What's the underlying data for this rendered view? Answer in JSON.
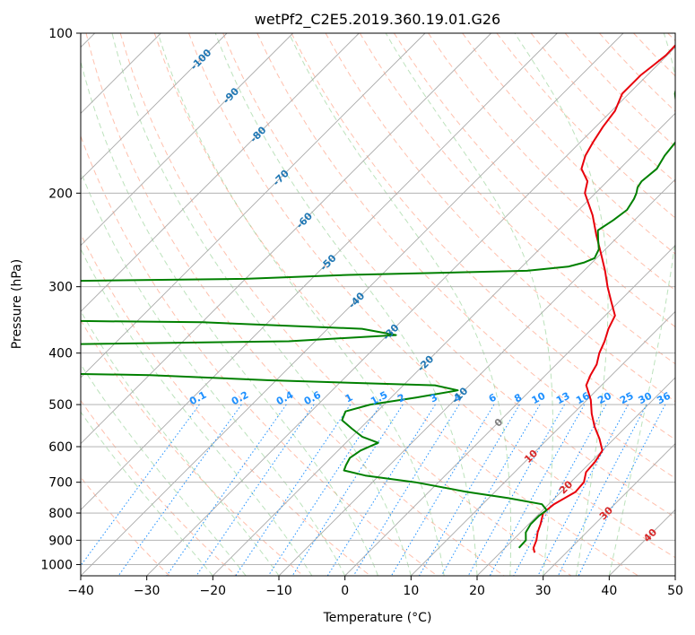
{
  "colors": {
    "temperature": "#e8000b",
    "dewpoint": "#008000",
    "isotherm": "#a9a9a9",
    "isobar": "#a9a9a9",
    "dry_adiabat": "#ff8c69",
    "moist_adiabat": "#8fcf8f",
    "mixing_ratio": "#1e90ff",
    "isotherm_label": "#1f77b4",
    "isotherm_label_warm": "#d62728",
    "zero_label": "#7f7f7f",
    "background": "#ffffff"
  },
  "chart_data": {
    "type": "line",
    "subtype": "skew-t log-p diagram",
    "title": "wetPf2_C2E5.2019.360.19.01.G26",
    "xlabel": "Temperature (°C)",
    "ylabel": "Pressure (hPa)",
    "xlim": [
      -40,
      50
    ],
    "ylim": [
      1050,
      100
    ],
    "y_scale": "log",
    "grid": true,
    "x_ticks": [
      -40,
      -30,
      -20,
      -10,
      0,
      10,
      20,
      30,
      40,
      50
    ],
    "x_tick_labels": [
      "−40",
      "−30",
      "−20",
      "−10",
      "0",
      "10",
      "20",
      "30",
      "40",
      "50"
    ],
    "y_ticks": [
      100,
      200,
      300,
      400,
      500,
      600,
      700,
      800,
      900,
      1000
    ],
    "y_tick_labels": [
      "100",
      "200",
      "300",
      "400",
      "500",
      "600",
      "700",
      "800",
      "900",
      "1000"
    ],
    "isotherm_labels": [
      {
        "text": "-100",
        "value": -100,
        "p": 112
      },
      {
        "text": "-90",
        "value": -90,
        "p": 131
      },
      {
        "text": "-80",
        "value": -80,
        "p": 155
      },
      {
        "text": "-70",
        "value": -70,
        "p": 187
      },
      {
        "text": "-60",
        "value": -60,
        "p": 225
      },
      {
        "text": "-50",
        "value": -50,
        "p": 270
      },
      {
        "text": "-40",
        "value": -40,
        "p": 318
      },
      {
        "text": "-30",
        "value": -30,
        "p": 365
      },
      {
        "text": "-20",
        "value": -20,
        "p": 418
      },
      {
        "text": "-10",
        "value": -10,
        "p": 480
      },
      {
        "text": "0",
        "value": 0,
        "p": 540
      },
      {
        "text": "10",
        "value": 10,
        "p": 625
      },
      {
        "text": "20",
        "value": 20,
        "p": 715
      },
      {
        "text": "30",
        "value": 30,
        "p": 800
      },
      {
        "text": "40",
        "value": 40,
        "p": 880
      }
    ],
    "mixing_ratio_labels": [
      "0.1",
      "0.2",
      "0.4",
      "0.6",
      "1",
      "1.5",
      "2",
      "3",
      "4",
      "6",
      "8",
      "10",
      "13",
      "16",
      "20",
      "25",
      "30",
      "36"
    ],
    "mixing_ratio_values": [
      0.1,
      0.2,
      0.4,
      0.6,
      1,
      1.5,
      2,
      3,
      4,
      6,
      8,
      10,
      13,
      16,
      20,
      25,
      30,
      36
    ],
    "series": [
      {
        "p": [
          950,
          930,
          900,
          870,
          840,
          800,
          770,
          730,
          700,
          670,
          640,
          610,
          580,
          550,
          520,
          490,
          460,
          440,
          420,
          400,
          380,
          360,
          340,
          320,
          300,
          280,
          260,
          240,
          220,
          200,
          190,
          180,
          170,
          160,
          150,
          140,
          130,
          125,
          120,
          115,
          110,
          105,
          100
        ],
        "t": [
          25.2,
          24.3,
          23.6,
          22.6,
          21.8,
          20.5,
          20.8,
          22.2,
          22.0,
          20.8,
          20.6,
          20.0,
          17.8,
          15.2,
          12.8,
          10.6,
          7.7,
          6.8,
          6.1,
          4.8,
          3.8,
          2.5,
          1.5,
          -1.2,
          -4.0,
          -6.8,
          -10.0,
          -13.5,
          -17.1,
          -21.6,
          -23.0,
          -25.8,
          -27.2,
          -28.1,
          -28.9,
          -29.5,
          -31.0,
          -31.0,
          -31.0,
          -30.6,
          -30.2,
          -30.3,
          -30.8
        ]
      },
      {
        "p": [
          930,
          900,
          870,
          840,
          810,
          790,
          770,
          750,
          730,
          700,
          680,
          665,
          650,
          630,
          610,
          590,
          575,
          555,
          535,
          515,
          500,
          485,
          470,
          460,
          450,
          440,
          430,
          390,
          380,
          370,
          360,
          350,
          345,
          340,
          295,
          290,
          285,
          280,
          275,
          270,
          265,
          255,
          245,
          235,
          225,
          215,
          205,
          200,
          195,
          190,
          180,
          170,
          160,
          150,
          140,
          130,
          120,
          110,
          100
        ],
        "td": [
          22.1,
          22.0,
          20.8,
          20.3,
          20.3,
          20.6,
          19.0,
          13.0,
          5.8,
          -3.5,
          -12.1,
          -16.1,
          -16.6,
          -17.1,
          -16.6,
          -15.1,
          -18.4,
          -21.2,
          -24.0,
          -24.8,
          -22.1,
          -16.2,
          -11.0,
          -15.2,
          -41.0,
          -60.0,
          -110.0,
          -110.0,
          -44.0,
          -28.7,
          -34.8,
          -60.0,
          -110.0,
          -110.0,
          -110.0,
          -60.0,
          -45.0,
          -18.6,
          -13.0,
          -11.2,
          -10.3,
          -11.0,
          -12.5,
          -14.0,
          -13.2,
          -12.7,
          -13.3,
          -13.8,
          -14.5,
          -14.8,
          -14.4,
          -15.2,
          -15.6,
          -17.5,
          -20.1,
          -23.0,
          -25.2,
          -26.6,
          -28.1
        ]
      }
    ]
  }
}
